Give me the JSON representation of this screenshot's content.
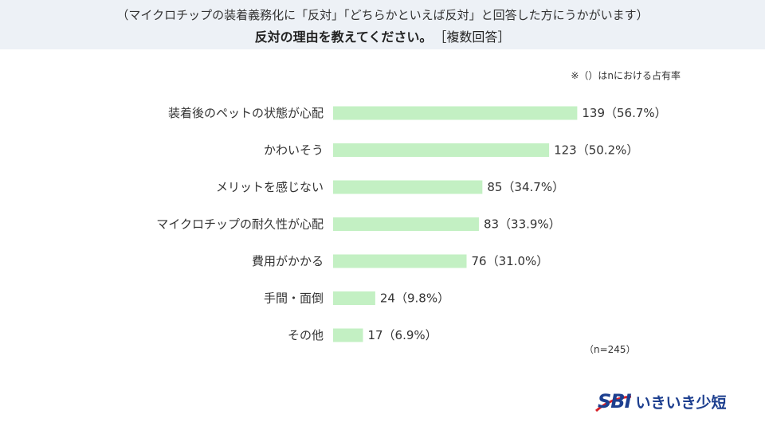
{
  "header": {
    "subtitle": "（マイクロチップの装着義務化に「反対」「どちらかといえば反対」と回答した方にうかがいます）",
    "title": "反対の理由を教えてください。",
    "title_suffix": "［複数回答］"
  },
  "note": "※（）はnにおける占有率",
  "n_note": "（n=245）",
  "logo": {
    "mark": "SBI",
    "text": "いきいき少短"
  },
  "colors": {
    "bar": "#c3f0c3",
    "header_bg": "#edf1f6",
    "logo": "#1d3f8f"
  },
  "chart_data": {
    "type": "bar",
    "orientation": "horizontal",
    "categories": [
      "装着後のペットの状態が心配",
      "かわいそう",
      "メリットを感じない",
      "マイクロチップの耐久性が心配",
      "費用がかかる",
      "手間・面倒",
      "その他"
    ],
    "values": [
      139,
      123,
      85,
      83,
      76,
      24,
      17
    ],
    "percents": [
      "56.7%",
      "50.2%",
      "34.7%",
      "33.9%",
      "31.0%",
      "9.8%",
      "6.9%"
    ],
    "value_labels": [
      "139（56.7%）",
      "123（50.2%）",
      "85（34.7%）",
      "83（33.9%）",
      "76（31.0%）",
      "24（9.8%）",
      "17（6.9%）"
    ],
    "xlim": [
      0,
      245
    ],
    "grid": false,
    "legend": "none"
  }
}
